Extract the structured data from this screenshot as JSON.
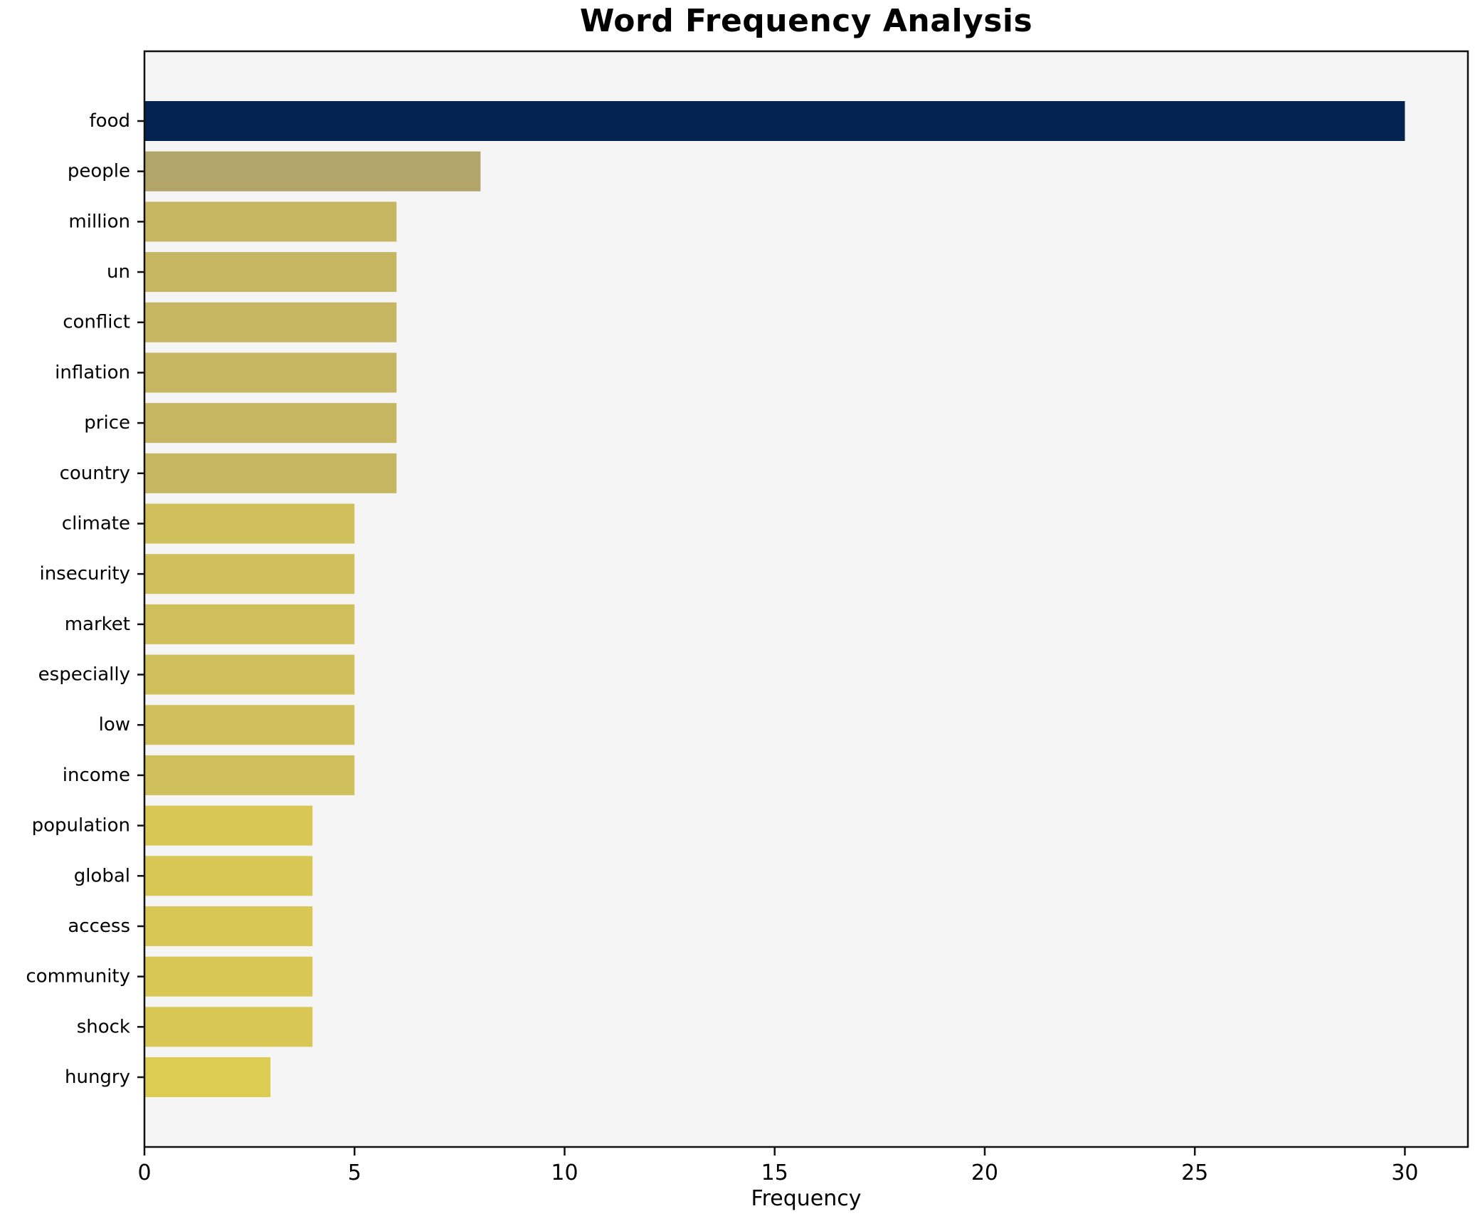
{
  "chart_data": {
    "type": "bar",
    "orientation": "horizontal",
    "title": "Word Frequency Analysis",
    "xlabel": "Frequency",
    "ylabel": "",
    "categories": [
      "food",
      "people",
      "million",
      "un",
      "conflict",
      "inflation",
      "price",
      "country",
      "climate",
      "insecurity",
      "market",
      "especially",
      "low",
      "income",
      "population",
      "global",
      "access",
      "community",
      "shock",
      "hungry"
    ],
    "values": [
      30,
      8,
      6,
      6,
      6,
      6,
      6,
      6,
      5,
      5,
      5,
      5,
      5,
      5,
      4,
      4,
      4,
      4,
      4,
      3
    ],
    "bar_colors": [
      "#032450",
      "#b1a56a",
      "#c6b662",
      "#c6b662",
      "#c6b662",
      "#c6b662",
      "#c6b662",
      "#c6b662",
      "#d0c05c",
      "#d0c05c",
      "#d0c05c",
      "#d0c05c",
      "#d0c05c",
      "#d0c05c",
      "#d8c754",
      "#d8c754",
      "#d8c754",
      "#d8c754",
      "#d8c754",
      "#ddcc52"
    ],
    "x_ticks": [
      0,
      5,
      10,
      15,
      20,
      25,
      30
    ],
    "xlim": [
      0,
      31.5
    ],
    "grid": false,
    "legend": null,
    "plot_background": "#f5f5f6",
    "figure_background": "#ffffff",
    "axis_color": "#111111",
    "text_color": "#000000"
  }
}
